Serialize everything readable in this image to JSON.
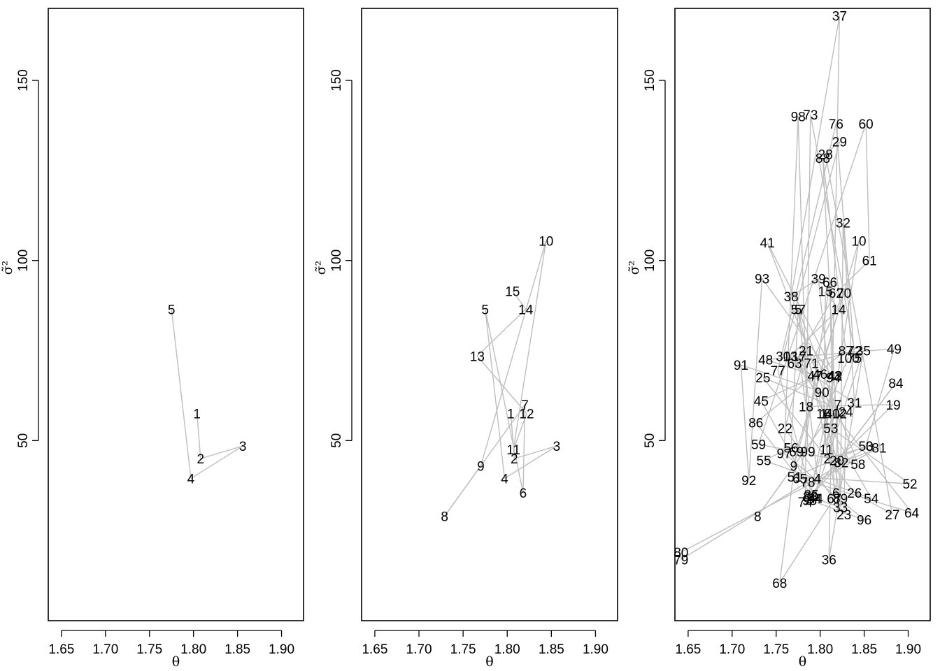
{
  "chart_data": [
    {
      "type": "line",
      "xlabel": "θ",
      "ylabel": "σ̃²",
      "xlim": [
        1.635,
        1.925
      ],
      "ylim": [
        0,
        170
      ],
      "xticks": [
        "1.65",
        "1.70",
        "1.75",
        "1.80",
        "1.85",
        "1.90"
      ],
      "yticks": [
        "50",
        "100",
        "150"
      ],
      "points": [
        {
          "label": "1",
          "x": 1.804,
          "y": 57.5
        },
        {
          "label": "2",
          "x": 1.808,
          "y": 45
        },
        {
          "label": "3",
          "x": 1.856,
          "y": 48.5
        },
        {
          "label": "4",
          "x": 1.797,
          "y": 39.5
        },
        {
          "label": "5",
          "x": 1.775,
          "y": 86.5
        }
      ]
    },
    {
      "type": "line",
      "xlabel": "θ",
      "ylabel": "σ̃²",
      "xlim": [
        1.635,
        1.925
      ],
      "ylim": [
        0,
        170
      ],
      "xticks": [
        "1.65",
        "1.70",
        "1.75",
        "1.80",
        "1.85",
        "1.90"
      ],
      "yticks": [
        "50",
        "100",
        "150"
      ],
      "points": [
        {
          "label": "1",
          "x": 1.804,
          "y": 57.5
        },
        {
          "label": "2",
          "x": 1.808,
          "y": 45
        },
        {
          "label": "3",
          "x": 1.856,
          "y": 48.5
        },
        {
          "label": "4",
          "x": 1.797,
          "y": 39.5
        },
        {
          "label": "5",
          "x": 1.775,
          "y": 86.5
        },
        {
          "label": "6",
          "x": 1.818,
          "y": 35.5
        },
        {
          "label": "7",
          "x": 1.82,
          "y": 60
        },
        {
          "label": "8",
          "x": 1.729,
          "y": 29
        },
        {
          "label": "9",
          "x": 1.77,
          "y": 43
        },
        {
          "label": "10",
          "x": 1.844,
          "y": 105.5
        },
        {
          "label": "11",
          "x": 1.807,
          "y": 47.5
        },
        {
          "label": "12",
          "x": 1.822,
          "y": 57.5
        },
        {
          "label": "13",
          "x": 1.766,
          "y": 73.5
        },
        {
          "label": "14",
          "x": 1.821,
          "y": 86.5
        },
        {
          "label": "15",
          "x": 1.806,
          "y": 91.5
        }
      ]
    },
    {
      "type": "line",
      "xlabel": "θ",
      "ylabel": "σ̃²",
      "xlim": [
        1.635,
        1.925
      ],
      "ylim": [
        0,
        170
      ],
      "xticks": [
        "1.65",
        "1.70",
        "1.75",
        "1.80",
        "1.85",
        "1.90"
      ],
      "yticks": [
        "50",
        "100",
        "150"
      ],
      "points": [
        {
          "label": "1",
          "x": 1.804,
          "y": 57.5
        },
        {
          "label": "2",
          "x": 1.808,
          "y": 45
        },
        {
          "label": "3",
          "x": 1.856,
          "y": 48.5
        },
        {
          "label": "4",
          "x": 1.797,
          "y": 39.5
        },
        {
          "label": "5",
          "x": 1.775,
          "y": 86.5
        },
        {
          "label": "6",
          "x": 1.818,
          "y": 35.5
        },
        {
          "label": "7",
          "x": 1.82,
          "y": 60
        },
        {
          "label": "8",
          "x": 1.729,
          "y": 29
        },
        {
          "label": "9",
          "x": 1.77,
          "y": 43
        },
        {
          "label": "10",
          "x": 1.844,
          "y": 105.5
        },
        {
          "label": "11",
          "x": 1.807,
          "y": 47.5
        },
        {
          "label": "12",
          "x": 1.822,
          "y": 57.5
        },
        {
          "label": "13",
          "x": 1.766,
          "y": 73.5
        },
        {
          "label": "14",
          "x": 1.821,
          "y": 86.5
        },
        {
          "label": "15",
          "x": 1.806,
          "y": 91.5
        },
        {
          "label": "16",
          "x": 1.804,
          "y": 57.5
        },
        {
          "label": "17",
          "x": 1.776,
          "y": 73.5
        },
        {
          "label": "18",
          "x": 1.784,
          "y": 59.5
        },
        {
          "label": "19",
          "x": 1.883,
          "y": 60
        },
        {
          "label": "20",
          "x": 1.819,
          "y": 44.5
        },
        {
          "label": "21",
          "x": 1.784,
          "y": 75
        },
        {
          "label": "22",
          "x": 1.76,
          "y": 53.5
        },
        {
          "label": "23",
          "x": 1.827,
          "y": 29.5
        },
        {
          "label": "24",
          "x": 1.829,
          "y": 58
        },
        {
          "label": "25",
          "x": 1.735,
          "y": 67.5
        },
        {
          "label": "26",
          "x": 1.839,
          "y": 35.5
        },
        {
          "label": "27",
          "x": 1.882,
          "y": 29.5
        },
        {
          "label": "28",
          "x": 1.806,
          "y": 129.5
        },
        {
          "label": "29",
          "x": 1.822,
          "y": 133
        },
        {
          "label": "30",
          "x": 1.758,
          "y": 73.5
        },
        {
          "label": "31",
          "x": 1.839,
          "y": 60.5
        },
        {
          "label": "32",
          "x": 1.826,
          "y": 110.5
        },
        {
          "label": "33",
          "x": 1.823,
          "y": 31.5
        },
        {
          "label": "34",
          "x": 1.793,
          "y": 34
        },
        {
          "label": "35",
          "x": 1.849,
          "y": 75
        },
        {
          "label": "36",
          "x": 1.81,
          "y": 17
        },
        {
          "label": "37",
          "x": 1.822,
          "y": 168
        },
        {
          "label": "38",
          "x": 1.767,
          "y": 90
        },
        {
          "label": "39",
          "x": 1.798,
          "y": 95
        },
        {
          "label": "40",
          "x": 1.814,
          "y": 57.5
        },
        {
          "label": "41",
          "x": 1.74,
          "y": 105
        },
        {
          "label": "42",
          "x": 1.817,
          "y": 68
        },
        {
          "label": "43",
          "x": 1.816,
          "y": 68
        },
        {
          "label": "44",
          "x": 1.795,
          "y": 34
        },
        {
          "label": "45",
          "x": 1.733,
          "y": 61
        },
        {
          "label": "46",
          "x": 1.8,
          "y": 68.5
        },
        {
          "label": "47",
          "x": 1.794,
          "y": 68
        },
        {
          "label": "48",
          "x": 1.738,
          "y": 72.5
        },
        {
          "label": "49",
          "x": 1.884,
          "y": 75.5
        },
        {
          "label": "50",
          "x": 1.852,
          "y": 48.5
        },
        {
          "label": "51",
          "x": 1.771,
          "y": 40
        },
        {
          "label": "52",
          "x": 1.902,
          "y": 38
        },
        {
          "label": "53",
          "x": 1.812,
          "y": 53.5
        },
        {
          "label": "54",
          "x": 1.858,
          "y": 34
        },
        {
          "label": "55",
          "x": 1.736,
          "y": 44.5
        },
        {
          "label": "56",
          "x": 1.767,
          "y": 48
        },
        {
          "label": "57",
          "x": 1.775,
          "y": 86.5
        },
        {
          "label": "58",
          "x": 1.843,
          "y": 43.5
        },
        {
          "label": "59",
          "x": 1.73,
          "y": 49
        },
        {
          "label": "60",
          "x": 1.852,
          "y": 138
        },
        {
          "label": "61",
          "x": 1.856,
          "y": 100
        },
        {
          "label": "62",
          "x": 1.818,
          "y": 91
        },
        {
          "label": "63",
          "x": 1.771,
          "y": 71.5
        },
        {
          "label": "64",
          "x": 1.904,
          "y": 30
        },
        {
          "label": "65",
          "x": 1.777,
          "y": 39.5
        },
        {
          "label": "66",
          "x": 1.811,
          "y": 94
        },
        {
          "label": "67",
          "x": 1.816,
          "y": 34
        },
        {
          "label": "68",
          "x": 1.754,
          "y": 10.5
        },
        {
          "label": "69",
          "x": 1.773,
          "y": 47
        },
        {
          "label": "70",
          "x": 1.827,
          "y": 91
        },
        {
          "label": "71",
          "x": 1.79,
          "y": 71.5
        },
        {
          "label": "72",
          "x": 1.839,
          "y": 75
        },
        {
          "label": "73",
          "x": 1.789,
          "y": 140.5
        },
        {
          "label": "74",
          "x": 1.783,
          "y": 33
        },
        {
          "label": "75",
          "x": 1.839,
          "y": 73
        },
        {
          "label": "76",
          "x": 1.818,
          "y": 138
        },
        {
          "label": "77",
          "x": 1.752,
          "y": 69.5
        },
        {
          "label": "78",
          "x": 1.786,
          "y": 38.5
        },
        {
          "label": "79",
          "x": 1.642,
          "y": 17
        },
        {
          "label": "80",
          "x": 1.642,
          "y": 19
        },
        {
          "label": "81",
          "x": 1.867,
          "y": 48
        },
        {
          "label": "82",
          "x": 1.824,
          "y": 44
        },
        {
          "label": "83",
          "x": 1.789,
          "y": 34.5
        },
        {
          "label": "84",
          "x": 1.886,
          "y": 66
        },
        {
          "label": "85",
          "x": 1.79,
          "y": 35
        },
        {
          "label": "86",
          "x": 1.727,
          "y": 55
        },
        {
          "label": "87",
          "x": 1.829,
          "y": 75
        },
        {
          "label": "88",
          "x": 1.803,
          "y": 128.5
        },
        {
          "label": "89",
          "x": 1.823,
          "y": 34
        },
        {
          "label": "90",
          "x": 1.802,
          "y": 63.5
        },
        {
          "label": "91",
          "x": 1.71,
          "y": 71
        },
        {
          "label": "92",
          "x": 1.719,
          "y": 39
        },
        {
          "label": "93",
          "x": 1.734,
          "y": 95
        },
        {
          "label": "94",
          "x": 1.815,
          "y": 67.5
        },
        {
          "label": "95",
          "x": 1.788,
          "y": 33.5
        },
        {
          "label": "96",
          "x": 1.85,
          "y": 28
        },
        {
          "label": "97",
          "x": 1.759,
          "y": 46.5
        },
        {
          "label": "98",
          "x": 1.775,
          "y": 140
        },
        {
          "label": "99",
          "x": 1.786,
          "y": 47
        },
        {
          "label": "100",
          "x": 1.832,
          "y": 73
        }
      ]
    }
  ]
}
